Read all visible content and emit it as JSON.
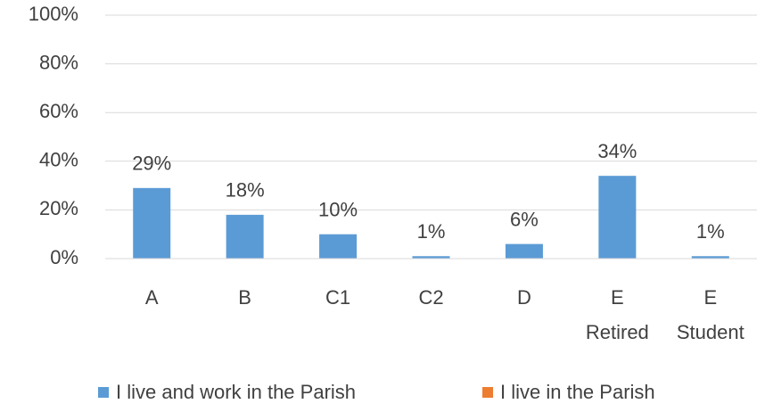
{
  "chart_data": {
    "type": "bar",
    "categories": [
      "A",
      "B",
      "C1",
      "C2",
      "D",
      "E\nRetired",
      "E\nStudent"
    ],
    "series": [
      {
        "name": "I live and work in the Parish",
        "color": "#5b9bd5",
        "values": [
          29,
          18,
          10,
          1,
          6,
          34,
          1
        ],
        "value_labels": [
          "29%",
          "18%",
          "10%",
          "1%",
          "6%",
          "34%",
          "1%"
        ]
      },
      {
        "name": "I live in the Parish",
        "color": "#ed7d31",
        "values": [
          null,
          null,
          null,
          null,
          null,
          null,
          null
        ]
      }
    ],
    "ylim": [
      0,
      100
    ],
    "yticks": [
      {
        "value": 0,
        "label": "0%"
      },
      {
        "value": 20,
        "label": "20%"
      },
      {
        "value": 40,
        "label": "40%"
      },
      {
        "value": 60,
        "label": "60%"
      },
      {
        "value": 80,
        "label": "80%"
      },
      {
        "value": 100,
        "label": "100%"
      }
    ],
    "grid": true,
    "legend": "bottom"
  }
}
